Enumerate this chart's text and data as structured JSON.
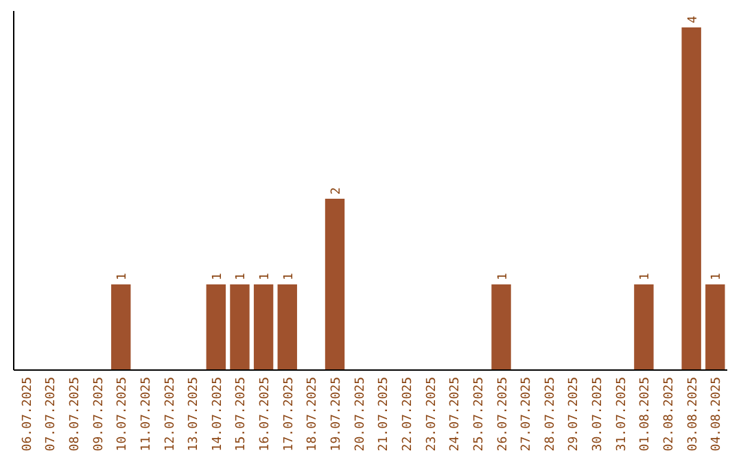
{
  "chart_data": {
    "type": "bar",
    "categories": [
      "06.07.2025",
      "07.07.2025",
      "08.07.2025",
      "09.07.2025",
      "10.07.2025",
      "11.07.2025",
      "12.07.2025",
      "13.07.2025",
      "14.07.2025",
      "15.07.2025",
      "16.07.2025",
      "17.07.2025",
      "18.07.2025",
      "19.07.2025",
      "20.07.2025",
      "21.07.2025",
      "22.07.2025",
      "23.07.2025",
      "24.07.2025",
      "25.07.2025",
      "26.07.2025",
      "27.07.2025",
      "28.07.2025",
      "29.07.2025",
      "30.07.2025",
      "31.07.2025",
      "01.08.2025",
      "02.08.2025",
      "03.08.2025",
      "04.08.2025"
    ],
    "values": [
      0,
      0,
      0,
      0,
      1,
      0,
      0,
      0,
      1,
      1,
      1,
      1,
      0,
      2,
      0,
      0,
      0,
      0,
      0,
      0,
      1,
      0,
      0,
      0,
      0,
      0,
      1,
      0,
      4,
      1
    ],
    "value_labels": [
      null,
      null,
      null,
      null,
      "1",
      null,
      null,
      null,
      "1",
      "1",
      "1",
      "1",
      null,
      "2",
      null,
      null,
      null,
      null,
      null,
      null,
      "1",
      null,
      null,
      null,
      null,
      null,
      "1",
      null,
      "4",
      "1"
    ],
    "color": "#a0522d",
    "tick_labels": "x"
  }
}
